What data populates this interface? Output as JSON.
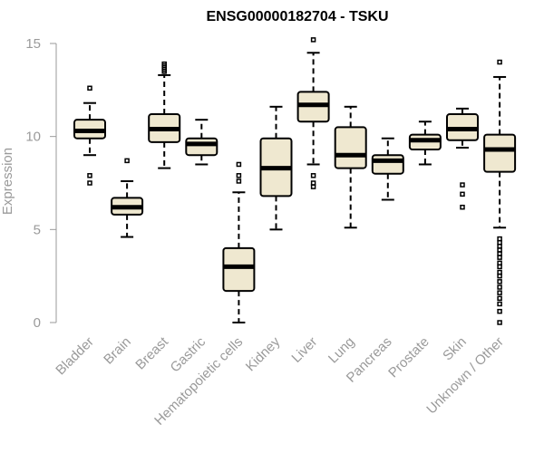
{
  "chart_data": {
    "type": "box",
    "title": "ENSG00000182704 - TSKU",
    "xlabel": "",
    "ylabel": "Expression",
    "ylim": [
      0,
      15
    ],
    "yticks": [
      0,
      5,
      10,
      15
    ],
    "grid": false,
    "colors": {
      "box_fill": "#efe8d0",
      "box_stroke": "#000000",
      "axis": "#9a9a9a",
      "title": "#000000"
    },
    "categories": [
      "Bladder",
      "Brain",
      "Breast",
      "Gastric",
      "Hematopoietic cells",
      "Kidney",
      "Liver",
      "Lung",
      "Pancreas",
      "Prostate",
      "Skin",
      "Unknown / Other"
    ],
    "boxes": [
      {
        "whisker_low": 9.0,
        "q1": 9.9,
        "median": 10.3,
        "q3": 10.9,
        "whisker_high": 11.8,
        "outliers": [
          12.6,
          7.9,
          7.5
        ]
      },
      {
        "whisker_low": 4.6,
        "q1": 5.8,
        "median": 6.2,
        "q3": 6.7,
        "whisker_high": 7.6,
        "outliers": [
          8.7
        ]
      },
      {
        "whisker_low": 8.3,
        "q1": 9.7,
        "median": 10.4,
        "q3": 11.2,
        "whisker_high": 13.3,
        "outliers": [
          13.5,
          13.6,
          13.7,
          13.8,
          13.9
        ]
      },
      {
        "whisker_low": 8.5,
        "q1": 9.0,
        "median": 9.6,
        "q3": 9.9,
        "whisker_high": 10.9,
        "outliers": []
      },
      {
        "whisker_low": 0.0,
        "q1": 1.7,
        "median": 3.0,
        "q3": 4.0,
        "whisker_high": 7.0,
        "outliers": [
          7.6,
          7.9,
          8.5
        ]
      },
      {
        "whisker_low": 5.0,
        "q1": 6.8,
        "median": 8.3,
        "q3": 9.9,
        "whisker_high": 11.6,
        "outliers": []
      },
      {
        "whisker_low": 8.5,
        "q1": 10.8,
        "median": 11.7,
        "q3": 12.4,
        "whisker_high": 14.5,
        "outliers": [
          15.2,
          7.9,
          7.5,
          7.3
        ]
      },
      {
        "whisker_low": 5.1,
        "q1": 8.3,
        "median": 9.0,
        "q3": 10.5,
        "whisker_high": 11.6,
        "outliers": []
      },
      {
        "whisker_low": 6.6,
        "q1": 8.0,
        "median": 8.7,
        "q3": 9.0,
        "whisker_high": 9.9,
        "outliers": []
      },
      {
        "whisker_low": 8.5,
        "q1": 9.3,
        "median": 9.8,
        "q3": 10.1,
        "whisker_high": 10.8,
        "outliers": []
      },
      {
        "whisker_low": 9.4,
        "q1": 9.8,
        "median": 10.4,
        "q3": 11.2,
        "whisker_high": 11.5,
        "outliers": [
          7.4,
          6.9,
          6.2
        ]
      },
      {
        "whisker_low": 5.1,
        "q1": 8.1,
        "median": 9.3,
        "q3": 10.1,
        "whisker_high": 13.2,
        "outliers": [
          14.0,
          4.5,
          4.3,
          4.1,
          3.9,
          3.7,
          3.5,
          3.2,
          3.0,
          2.7,
          2.5,
          2.2,
          1.9,
          1.6,
          1.3,
          1.0,
          0.6,
          0.0
        ]
      }
    ]
  }
}
